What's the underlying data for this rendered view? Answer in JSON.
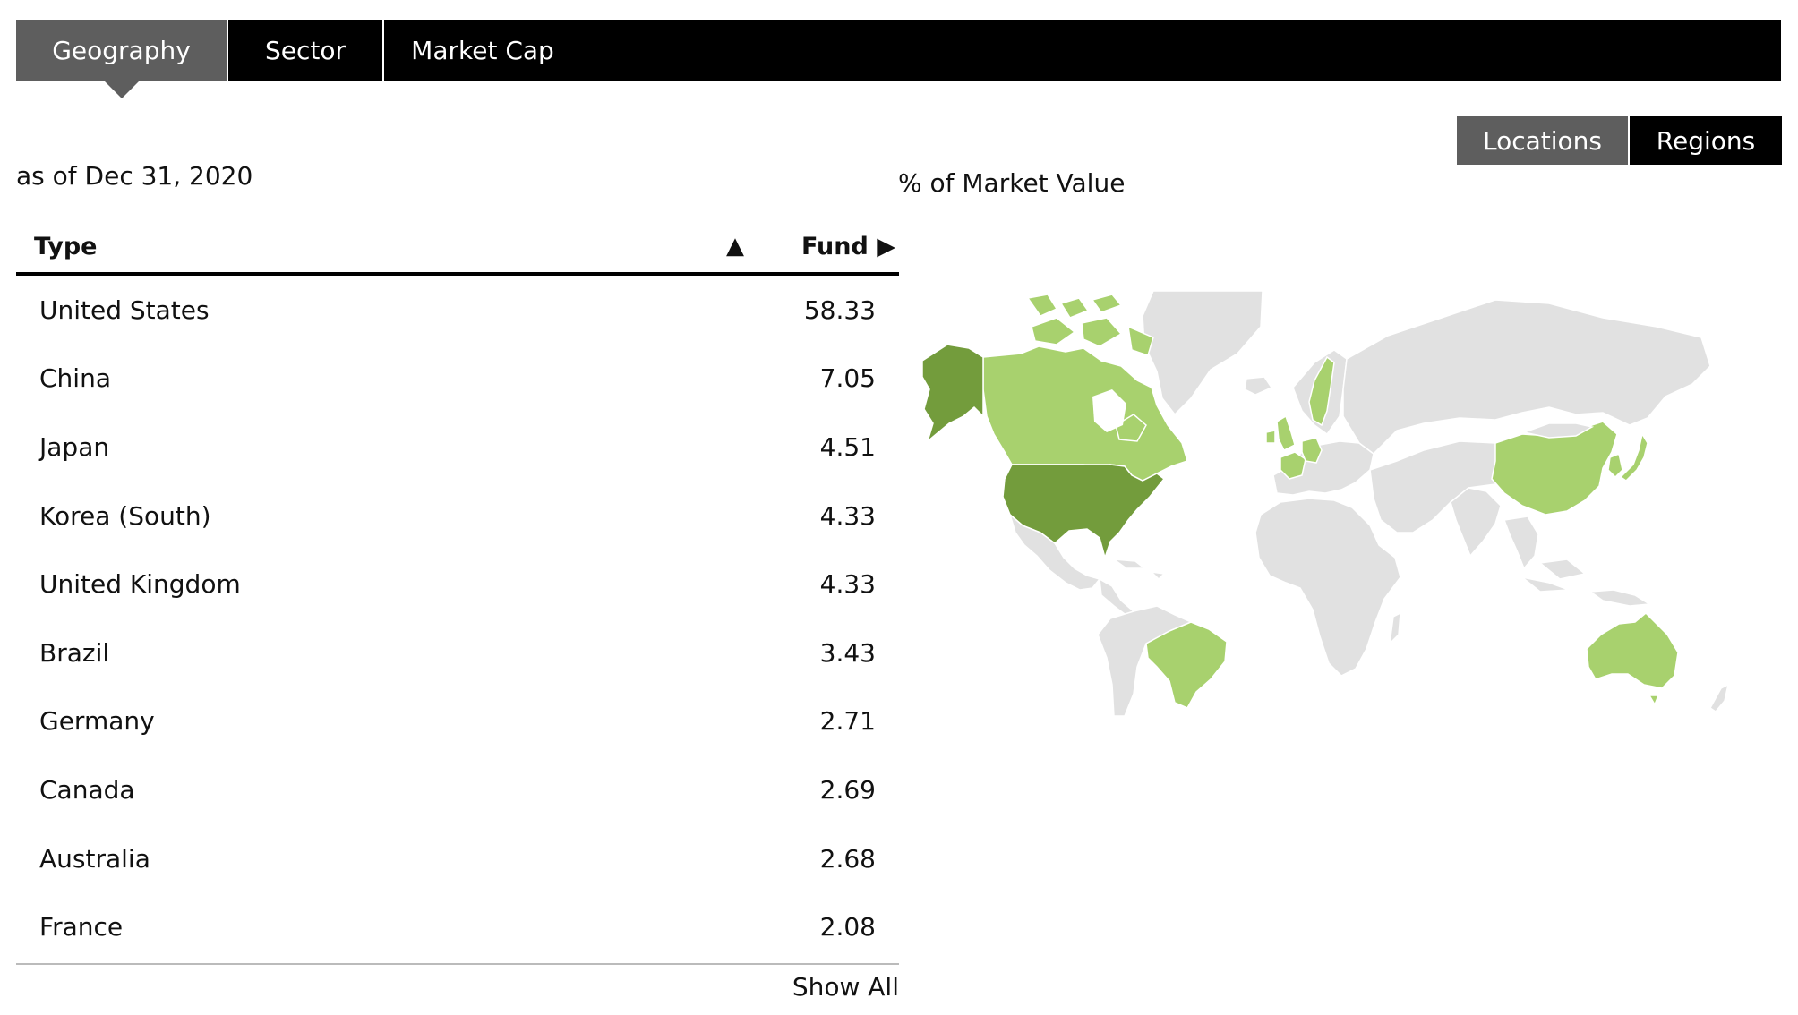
{
  "tabs": [
    {
      "label": "Geography",
      "active": true
    },
    {
      "label": "Sector",
      "active": false
    },
    {
      "label": "Market Cap",
      "active": false
    }
  ],
  "as_of": "as of Dec 31, 2020",
  "view_toggle": {
    "locations": "Locations",
    "regions": "Regions",
    "selected": "Locations"
  },
  "map": {
    "label": "% of Market Value",
    "colors": {
      "base": "#e1e1e1",
      "high": "#739c3c",
      "mid": "#a8d16e",
      "border": "#ffffff"
    },
    "highlighted_high": [
      "United States",
      "Alaska"
    ],
    "highlighted_mid": [
      "Canada",
      "Brazil",
      "China",
      "Japan",
      "Korea (South)",
      "United Kingdom",
      "Germany",
      "France",
      "Australia",
      "Sweden"
    ]
  },
  "table": {
    "col_type": "Type",
    "sort_glyph": "▲",
    "col_fund": "Fund ▶",
    "rows": [
      {
        "name": "United States",
        "value": "58.33"
      },
      {
        "name": "China",
        "value": "7.05"
      },
      {
        "name": "Japan",
        "value": "4.51"
      },
      {
        "name": "Korea (South)",
        "value": "4.33"
      },
      {
        "name": "United Kingdom",
        "value": "4.33"
      },
      {
        "name": "Brazil",
        "value": "3.43"
      },
      {
        "name": "Germany",
        "value": "2.71"
      },
      {
        "name": "Canada",
        "value": "2.69"
      },
      {
        "name": "Australia",
        "value": "2.68"
      },
      {
        "name": "France",
        "value": "2.08"
      }
    ],
    "show_all": "Show All"
  }
}
